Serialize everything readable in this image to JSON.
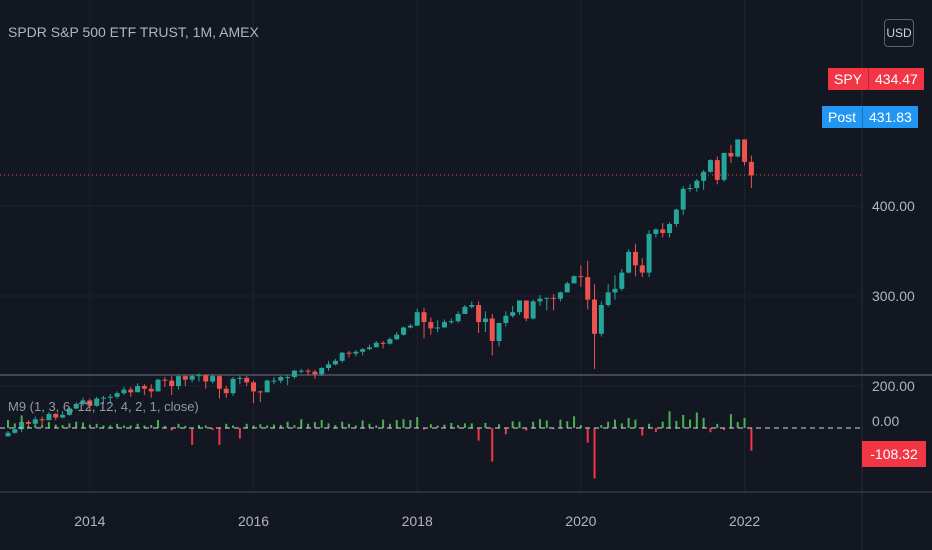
{
  "header": {
    "title": "SPDR S&P 500 ETF TRUST, 1M, AMEX"
  },
  "currency_button": "USD",
  "price_badges": {
    "last": {
      "tag": "SPY",
      "value": "434.47"
    },
    "post": {
      "tag": "Post",
      "value": "431.83"
    }
  },
  "indicator": {
    "label": "M9 (1, 3, 6, 12, 12, 4, 2, 1, close)",
    "zero_label": "0.00",
    "last_value": "-108.32"
  },
  "colors": {
    "up": "#26a69a",
    "down": "#ef5350",
    "hist_up": "#4caf50",
    "hist_down": "#f23645",
    "background": "#131722"
  },
  "chart_data": [
    {
      "type": "candlestick",
      "title": "SPDR S&P 500 ETF TRUST, 1M, AMEX",
      "interval": "1M",
      "y_ticks": [
        200,
        300,
        400
      ],
      "y_tick_labels": [
        "200.00",
        "300.00",
        "400.00"
      ],
      "x_tick_labels": [
        "2014",
        "2016",
        "2018",
        "2020",
        "2022"
      ],
      "x_start": "2013-01",
      "last_price": 434.47,
      "post_price": 431.83,
      "closes": [
        148,
        152,
        160,
        158,
        163,
        162,
        169,
        165,
        168,
        175,
        180,
        184,
        178,
        186,
        187,
        188,
        192,
        196,
        193,
        200,
        197,
        194,
        207,
        206,
        200,
        211,
        207,
        211,
        212,
        205,
        211,
        197,
        192,
        208,
        209,
        204,
        194,
        193,
        206,
        206,
        210,
        210,
        217,
        217,
        216,
        213,
        220,
        224,
        228,
        237,
        236,
        238,
        241,
        243,
        248,
        247,
        252,
        257,
        265,
        267,
        282,
        271,
        264,
        265,
        271,
        272,
        280,
        288,
        290,
        271,
        275,
        250,
        270,
        278,
        282,
        295,
        275,
        294,
        297,
        298,
        297,
        304,
        314,
        322,
        321,
        296,
        258,
        290,
        304,
        308,
        326,
        349,
        334,
        326,
        369,
        374,
        370,
        380,
        396,
        419,
        420,
        428,
        438,
        451,
        429,
        459,
        455,
        474,
        449,
        434
      ],
      "wicks": [
        [
          145,
          150
        ],
        [
          147,
          154
        ],
        [
          149,
          162
        ],
        [
          155,
          162
        ],
        [
          157,
          166
        ],
        [
          156,
          166
        ],
        [
          162,
          171
        ],
        [
          162,
          170
        ],
        [
          164,
          172
        ],
        [
          167,
          177
        ],
        [
          174,
          182
        ],
        [
          178,
          187
        ],
        [
          172,
          186
        ],
        [
          177,
          188
        ],
        [
          180,
          189
        ],
        [
          182,
          191
        ],
        [
          186,
          194
        ],
        [
          190,
          199
        ],
        [
          188,
          199
        ],
        [
          194,
          203
        ],
        [
          190,
          202
        ],
        [
          187,
          202
        ],
        [
          196,
          208
        ],
        [
          199,
          210
        ],
        [
          190,
          211
        ],
        [
          196,
          212
        ],
        [
          200,
          212
        ],
        [
          204,
          213
        ],
        [
          205,
          214
        ],
        [
          197,
          213
        ],
        [
          203,
          213
        ],
        [
          186,
          212
        ],
        [
          187,
          200
        ],
        [
          189,
          210
        ],
        [
          202,
          212
        ],
        [
          200,
          211
        ],
        [
          181,
          206
        ],
        [
          182,
          195
        ],
        [
          193,
          207
        ],
        [
          202,
          210
        ],
        [
          203,
          211
        ],
        [
          201,
          212
        ],
        [
          208,
          218
        ],
        [
          214,
          219
        ],
        [
          212,
          219
        ],
        [
          208,
          218
        ],
        [
          211,
          221
        ],
        [
          217,
          228
        ],
        [
          223,
          230
        ],
        [
          226,
          238
        ],
        [
          232,
          239
        ],
        [
          233,
          240
        ],
        [
          234,
          242
        ],
        [
          240,
          246
        ],
        [
          244,
          250
        ],
        [
          242,
          250
        ],
        [
          246,
          254
        ],
        [
          251,
          260
        ],
        [
          256,
          266
        ],
        [
          264,
          269
        ],
        [
          269,
          286
        ],
        [
          253,
          287
        ],
        [
          257,
          276
        ],
        [
          260,
          273
        ],
        [
          265,
          274
        ],
        [
          269,
          275
        ],
        [
          270,
          283
        ],
        [
          281,
          290
        ],
        [
          286,
          294
        ],
        [
          259,
          294
        ],
        [
          260,
          283
        ],
        [
          234,
          280
        ],
        [
          244,
          270
        ],
        [
          266,
          283
        ],
        [
          276,
          289
        ],
        [
          279,
          293
        ],
        [
          272,
          295
        ],
        [
          274,
          296
        ],
        [
          289,
          301
        ],
        [
          284,
          298
        ],
        [
          284,
          302
        ],
        [
          294,
          305
        ],
        [
          305,
          316
        ],
        [
          314,
          323
        ],
        [
          310,
          334
        ],
        [
          285,
          339
        ],
        [
          219,
          313
        ],
        [
          255,
          294
        ],
        [
          288,
          313
        ],
        [
          296,
          323
        ],
        [
          306,
          330
        ],
        [
          325,
          352
        ],
        [
          322,
          358
        ],
        [
          321,
          342
        ],
        [
          321,
          373
        ],
        [
          365,
          375
        ],
        [
          365,
          381
        ],
        [
          365,
          382
        ],
        [
          377,
          397
        ],
        [
          390,
          422
        ],
        [
          416,
          424
        ],
        [
          416,
          430
        ],
        [
          418,
          440
        ],
        [
          437,
          452
        ],
        [
          424,
          455
        ],
        [
          427,
          459
        ],
        [
          448,
          468
        ],
        [
          454,
          473
        ],
        [
          445,
          473
        ],
        [
          420,
          456
        ]
      ]
    },
    {
      "type": "bar",
      "title": "M9 (1, 3, 6, 12, 12, 4, 2, 1, close)",
      "y_ticks": [
        0
      ],
      "y_tick_labels": [
        "0.00"
      ],
      "last_value": -108.32,
      "values": [
        38,
        22,
        60,
        10,
        16,
        14,
        28,
        16,
        14,
        22,
        30,
        26,
        16,
        20,
        12,
        12,
        20,
        12,
        12,
        20,
        12,
        14,
        38,
        10,
        -12,
        20,
        10,
        -80,
        14,
        12,
        -10,
        -80,
        20,
        12,
        -50,
        20,
        12,
        18,
        12,
        16,
        14,
        30,
        14,
        42,
        20,
        28,
        38,
        22,
        14,
        30,
        20,
        12,
        36,
        20,
        12,
        40,
        20,
        38,
        42,
        38,
        52,
        -8,
        18,
        12,
        16,
        24,
        14,
        22,
        22,
        -60,
        24,
        -160,
        18,
        -30,
        32,
        30,
        -12,
        30,
        42,
        36,
        -6,
        40,
        32,
        56,
        14,
        -70,
        -240,
        14,
        30,
        40,
        22,
        48,
        40,
        -36,
        20,
        -20,
        30,
        80,
        34,
        62,
        40,
        74,
        48,
        -20,
        20,
        -10,
        66,
        28,
        48,
        -108.32
      ]
    }
  ]
}
